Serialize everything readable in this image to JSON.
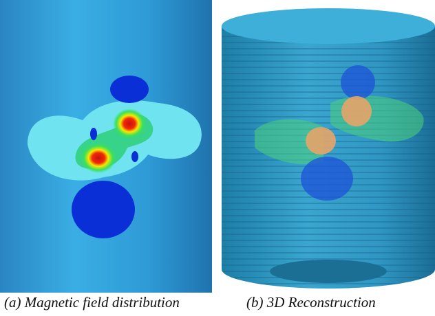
{
  "figure": {
    "panels": [
      {
        "caption": "(a) Magnetic field distribution"
      },
      {
        "caption": "(b) 3D Reconstruction"
      }
    ]
  }
}
